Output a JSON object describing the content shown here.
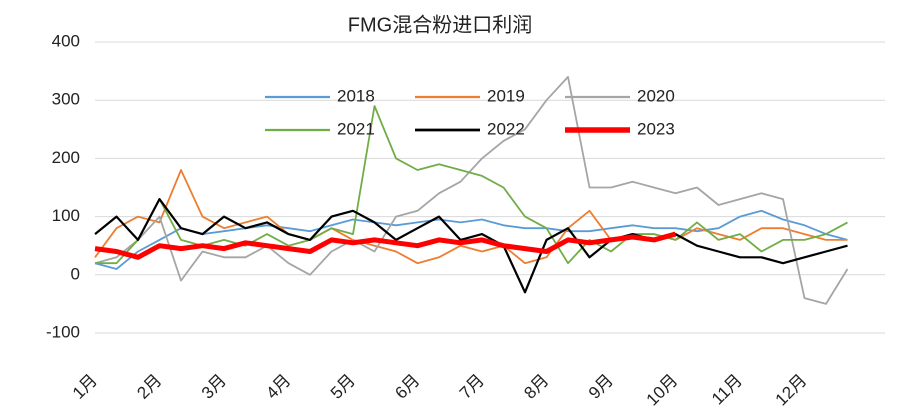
{
  "chart_data": {
    "type": "line",
    "title": "FMG混合粉进口利润",
    "categories": [
      "1月",
      null,
      null,
      "2月",
      null,
      null,
      "3月",
      null,
      null,
      "4月",
      null,
      null,
      "5月",
      null,
      null,
      "6月",
      null,
      null,
      "7月",
      null,
      null,
      "8月",
      null,
      null,
      "9月",
      null,
      null,
      "10月",
      null,
      null,
      "11月",
      null,
      null,
      "12月",
      null,
      null
    ],
    "series": [
      {
        "name": "2018",
        "color": "#5b9bd5",
        "values": [
          20,
          10,
          40,
          60,
          80,
          70,
          75,
          80,
          85,
          80,
          75,
          85,
          95,
          90,
          85,
          90,
          95,
          90,
          95,
          85,
          80,
          80,
          75,
          75,
          80,
          85,
          80,
          80,
          75,
          80,
          100,
          110,
          95,
          85,
          70,
          60
        ]
      },
      {
        "name": "2019",
        "color": "#ed7d31",
        "values": [
          30,
          80,
          100,
          90,
          180,
          100,
          80,
          90,
          100,
          70,
          60,
          80,
          60,
          50,
          40,
          20,
          30,
          50,
          40,
          50,
          20,
          30,
          80,
          110,
          60,
          70,
          70,
          60,
          80,
          70,
          60,
          80,
          80,
          70,
          60,
          60
        ]
      },
      {
        "name": "2020",
        "color": "#a5a5a5",
        "values": [
          20,
          30,
          60,
          100,
          -10,
          40,
          30,
          30,
          50,
          20,
          0,
          40,
          60,
          40,
          100,
          110,
          140,
          160,
          200,
          230,
          250,
          300,
          340,
          150,
          150,
          160,
          150,
          140,
          150,
          120,
          130,
          140,
          130,
          -40,
          -50,
          10
        ]
      },
      {
        "name": "2021",
        "color": "#70ad47",
        "values": [
          20,
          20,
          60,
          130,
          60,
          50,
          60,
          50,
          70,
          50,
          60,
          80,
          70,
          290,
          200,
          180,
          190,
          180,
          170,
          150,
          100,
          80,
          20,
          60,
          40,
          70,
          70,
          60,
          90,
          60,
          70,
          40,
          60,
          60,
          70,
          90
        ]
      },
      {
        "name": "2022",
        "color": "#000000",
        "values": [
          70,
          100,
          60,
          130,
          80,
          70,
          100,
          80,
          90,
          70,
          60,
          100,
          110,
          90,
          60,
          80,
          100,
          60,
          70,
          50,
          -30,
          60,
          80,
          30,
          60,
          70,
          60,
          70,
          50,
          40,
          30,
          30,
          20,
          30,
          40,
          50
        ]
      },
      {
        "name": "2023",
        "color": "#ff0000",
        "values": [
          45,
          40,
          30,
          50,
          45,
          50,
          45,
          55,
          50,
          45,
          40,
          60,
          55,
          60,
          55,
          50,
          60,
          55,
          60,
          50,
          45,
          40,
          60,
          55,
          60,
          65,
          60,
          70,
          null,
          null,
          null,
          null,
          null,
          null,
          null,
          null
        ]
      }
    ],
    "ylim": [
      -100,
      400
    ],
    "yticks": [
      -100,
      0,
      100,
      200,
      300,
      400
    ],
    "grid": true
  }
}
